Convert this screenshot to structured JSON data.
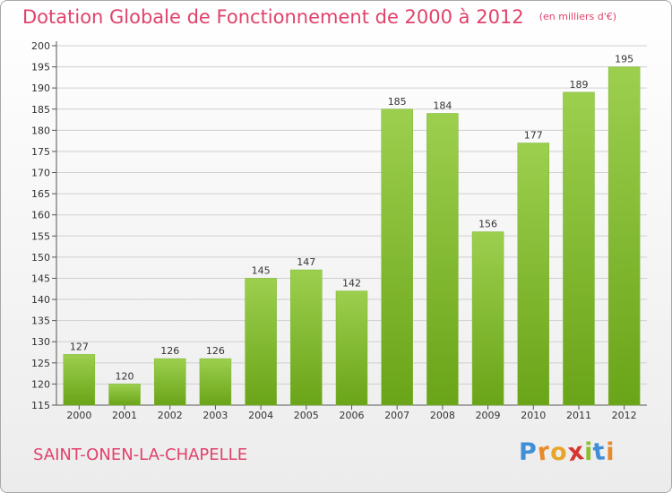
{
  "chart_data": {
    "type": "bar",
    "title": "Dotation Globale de Fonctionnement de 2000 à 2012",
    "unit": "(en milliers d'€)",
    "categories": [
      "2000",
      "2001",
      "2002",
      "2003",
      "2004",
      "2005",
      "2006",
      "2007",
      "2008",
      "2009",
      "2010",
      "2011",
      "2012"
    ],
    "values": [
      127,
      120,
      126,
      126,
      145,
      147,
      142,
      185,
      184,
      156,
      177,
      189,
      195
    ],
    "ylim": [
      115,
      200
    ],
    "yticks": [
      115,
      120,
      125,
      130,
      135,
      140,
      145,
      150,
      155,
      160,
      165,
      170,
      175,
      180,
      185,
      190,
      195,
      200
    ],
    "grid": true,
    "bar_color_top": "#9ccf4e",
    "bar_color_bottom": "#6aa418"
  },
  "commune": "SAINT-ONEN-LA-CHAPELLE",
  "logo": {
    "letters": [
      "P",
      "r",
      "o",
      "x",
      "i",
      "t",
      "i"
    ],
    "colors": [
      "#3f8fd8",
      "#e8892a",
      "#e8a52a",
      "#d9352f",
      "#8cbf30",
      "#3f8fd8",
      "#e8892a"
    ]
  }
}
